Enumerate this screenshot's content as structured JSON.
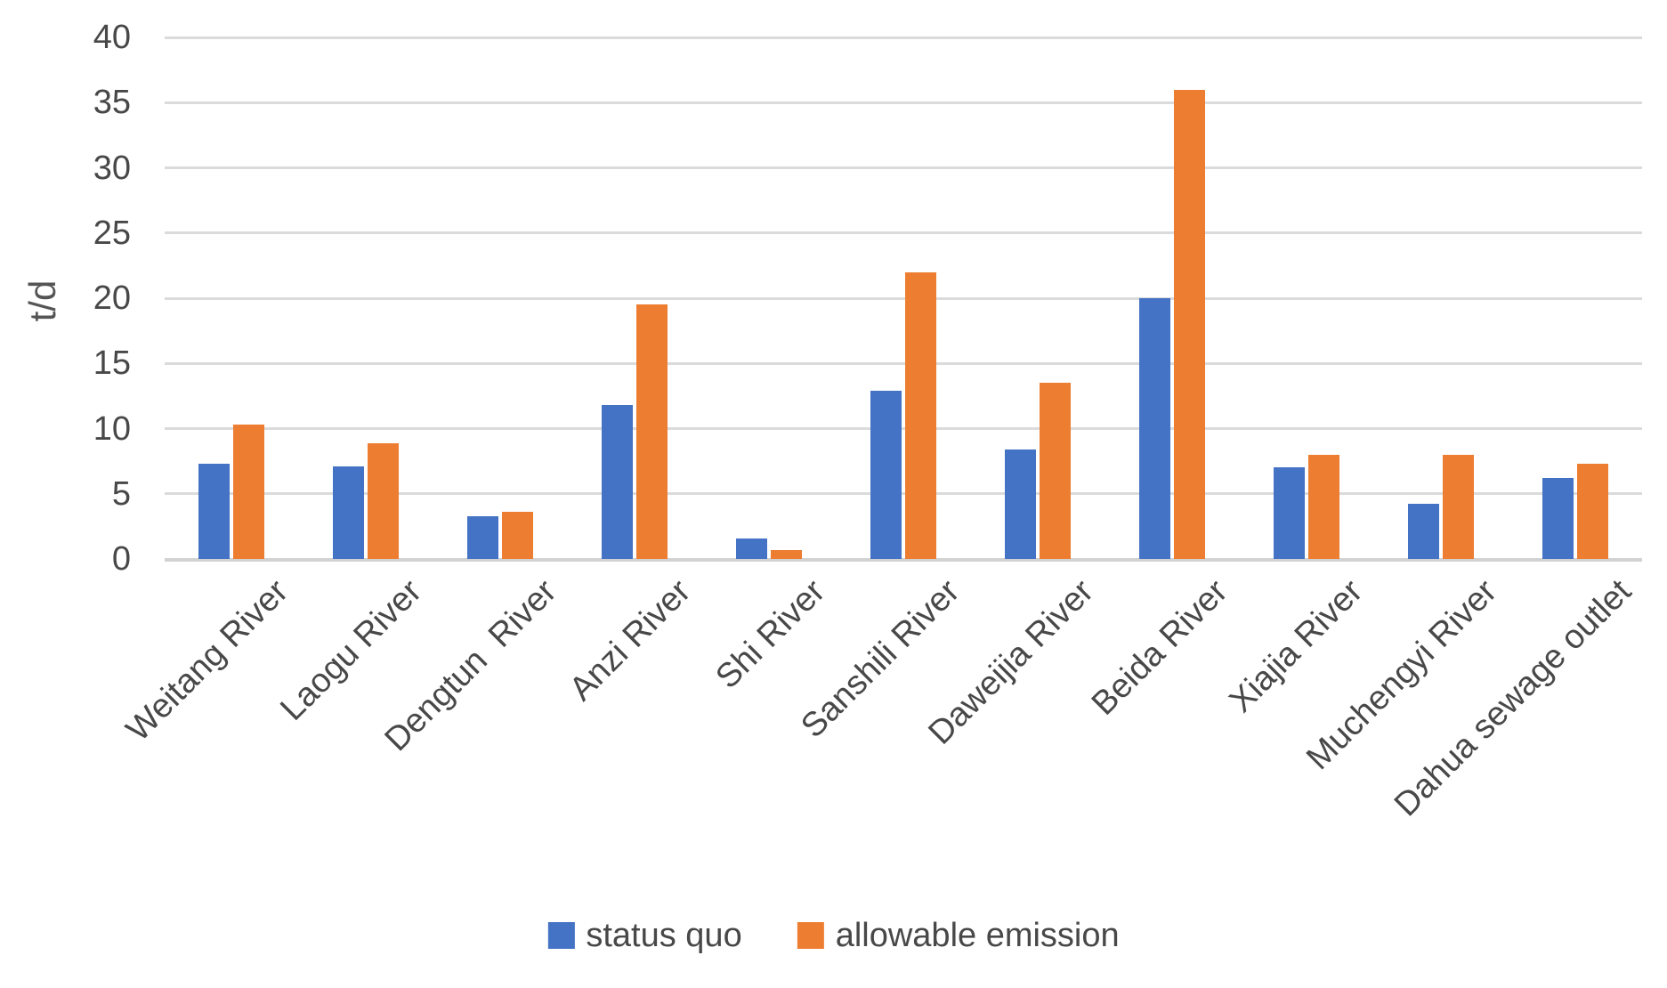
{
  "chart_data": {
    "type": "bar",
    "title": "",
    "xlabel": "",
    "ylabel": "t/d",
    "ylim": [
      0,
      40
    ],
    "ytick_step": 5,
    "grid": true,
    "legend_position": "bottom",
    "categories": [
      "Weitang River",
      "Laogu River",
      "Dengtun  River",
      "Anzi River",
      "Shi River",
      "Sanshili River",
      "Daweijia River",
      "Beida River",
      "Xiajia River",
      "Muchengyi River",
      "Dahua sewage outlet"
    ],
    "series": [
      {
        "name": "status quo",
        "color": "#4472C4",
        "values": [
          7.3,
          7.1,
          3.3,
          11.8,
          1.6,
          12.9,
          8.4,
          20,
          7,
          4.2,
          6.2
        ]
      },
      {
        "name": "allowable emission",
        "color": "#ED7D31",
        "values": [
          10.3,
          8.9,
          3.6,
          19.5,
          0.7,
          22,
          13.5,
          36,
          8,
          8,
          7.3
        ]
      }
    ]
  },
  "colors": {
    "series_blue": "#4472C4",
    "series_orange": "#ED7D31",
    "gridline": "#DBDBDB",
    "axis_text": "#484848"
  }
}
